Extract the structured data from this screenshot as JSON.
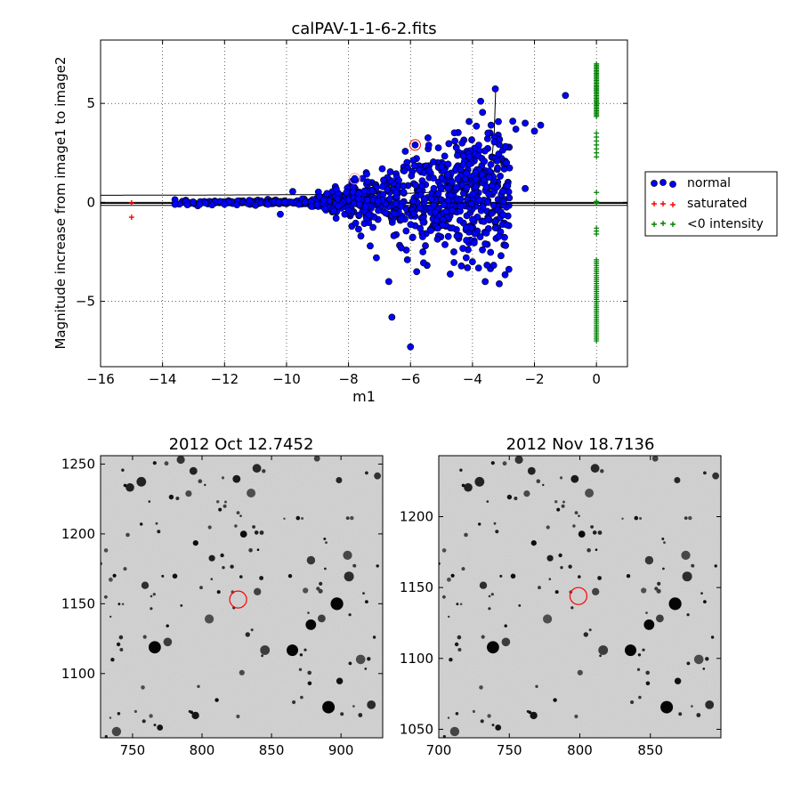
{
  "chart_data": [
    {
      "type": "scatter",
      "title": "calPAV-1-1-6-2.fits",
      "xlabel": "m1",
      "ylabel": "Magnitude increase from image1 to image2",
      "xlim": [
        -16,
        1
      ],
      "ylim": [
        -8.3,
        8.2
      ],
      "xticks": [
        -16,
        -14,
        -12,
        -10,
        -8,
        -6,
        -4,
        -2,
        0
      ],
      "yticks": [
        -5,
        0,
        5
      ],
      "grid": true,
      "legend_position": "outside right",
      "lines": {
        "horizontal_lines": [
          0.0,
          -0.05,
          -0.15
        ],
        "curve_description": "upper limit curve rising toward m1 = -3.2"
      },
      "highlighted_points": [
        [
          -5.85,
          2.9
        ],
        [
          -7.8,
          1.2
        ]
      ],
      "series": [
        {
          "name": "normal",
          "color": "#0000ff",
          "marker": "circle",
          "trend": "dense cloud from m1=-13.8 to -1; scatter widens toward fainter m1",
          "sample_points": [
            [
              -13.6,
              -0.1
            ],
            [
              -13.2,
              -0.12
            ],
            [
              -12.8,
              -0.1
            ],
            [
              -12.4,
              -0.13
            ],
            [
              -12.0,
              -0.1
            ],
            [
              -11.6,
              -0.12
            ],
            [
              -11.2,
              0.1
            ],
            [
              -11.0,
              -0.15
            ],
            [
              -10.6,
              -0.1
            ],
            [
              -10.2,
              -0.6
            ],
            [
              -9.8,
              0.55
            ],
            [
              -9.6,
              -0.1
            ],
            [
              -9.2,
              -0.2
            ],
            [
              -8.8,
              0.1
            ],
            [
              -8.4,
              -0.8
            ],
            [
              -8.0,
              -0.4
            ],
            [
              -7.8,
              1.2
            ],
            [
              -7.6,
              -1.7
            ],
            [
              -7.3,
              -2.2
            ],
            [
              -7.1,
              -2.8
            ],
            [
              -6.9,
              0.8
            ],
            [
              -6.7,
              -4.0
            ],
            [
              -6.6,
              -5.8
            ],
            [
              -6.3,
              -2.3
            ],
            [
              -6.1,
              -2.9
            ],
            [
              -6.0,
              -7.3
            ],
            [
              -5.85,
              2.9
            ],
            [
              -5.8,
              -3.5
            ],
            [
              -5.6,
              -2.5
            ],
            [
              -5.4,
              1.6
            ],
            [
              -5.2,
              -0.5
            ],
            [
              -5.0,
              1.8
            ],
            [
              -4.8,
              1.4
            ],
            [
              -4.6,
              -2.5
            ],
            [
              -4.5,
              -1.7
            ],
            [
              -4.3,
              1.9
            ],
            [
              -4.1,
              2.3
            ],
            [
              -4.0,
              -3.0
            ],
            [
              -3.9,
              1.5
            ],
            [
              -3.6,
              2.6
            ],
            [
              -3.5,
              3.5
            ],
            [
              -3.4,
              3.9
            ],
            [
              -3.2,
              2.1
            ],
            [
              -3.0,
              0.05
            ],
            [
              -2.9,
              2.0
            ],
            [
              -2.7,
              4.1
            ],
            [
              -2.6,
              3.7
            ],
            [
              -2.3,
              4.0
            ],
            [
              -2.3,
              0.7
            ],
            [
              -2.0,
              3.6
            ],
            [
              -1.8,
              3.9
            ],
            [
              -1.0,
              5.4
            ]
          ]
        },
        {
          "name": "saturated",
          "color": "#ff0000",
          "marker": "plus",
          "points": [
            [
              -15.0,
              -0.02
            ],
            [
              -15.0,
              -0.75
            ]
          ]
        },
        {
          "name": "<0 intensity",
          "color": "#008000",
          "marker": "plus",
          "trend": "column at m1 = 0 spanning y 2.1..7.0, y ~0, and y -1.3..-7.0"
        }
      ]
    },
    {
      "type": "heatmap",
      "title": "2012 Oct 12.7452",
      "xlim": [
        727,
        930
      ],
      "ylim": [
        1054,
        1256
      ],
      "xticks": [
        750,
        800,
        850,
        900
      ],
      "yticks": [
        1100,
        1150,
        1200,
        1250
      ],
      "marker_circle": [
        826,
        1153
      ],
      "colormap": "grayscale (dark = bright source)"
    },
    {
      "type": "heatmap",
      "title": "2012 Nov 18.7136",
      "xlim": [
        700,
        900
      ],
      "ylim": [
        1044,
        1243
      ],
      "xticks": [
        700,
        750,
        800,
        850
      ],
      "yticks": [
        1050,
        1100,
        1150,
        1200
      ],
      "marker_circle": [
        799,
        1144
      ],
      "colormap": "grayscale (dark = bright source)"
    }
  ]
}
